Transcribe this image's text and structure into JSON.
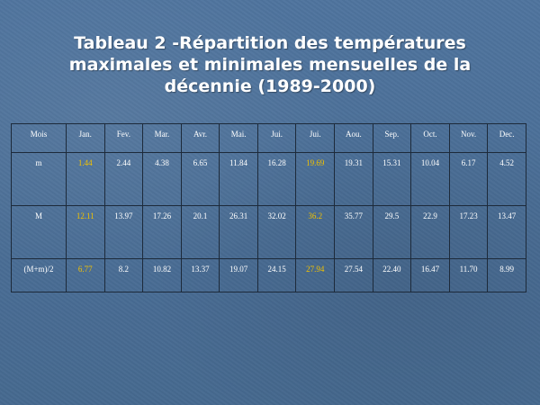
{
  "title": "Tableau 2 -Répartition des températures maximales et minimales mensuelles de la décennie (1989-2000)",
  "table": {
    "header": [
      "Mois",
      "Jan.",
      "Fev.",
      "Mar.",
      "Avr.",
      "Mai.",
      "Jui.",
      "Jui.",
      "Aou.",
      "Sep.",
      "Oct.",
      "Nov.",
      "Dec."
    ],
    "rows": [
      {
        "label": "m",
        "values": [
          "1.44",
          "2.44",
          "4.38",
          "6.65",
          "11.84",
          "16.28",
          "19.69",
          "19.31",
          "15.31",
          "10.04",
          "6.17",
          "4.52"
        ]
      },
      {
        "label": "M",
        "values": [
          "12.11",
          "13.97",
          "17.26",
          "20.1",
          "26.31",
          "32.02",
          "36.2",
          "35.77",
          "29.5",
          "22.9",
          "17.23",
          "13.47"
        ]
      },
      {
        "label": "(M+m)/2",
        "values": [
          "6.77",
          "8.2",
          "10.82",
          "13.37",
          "19.07",
          "24.15",
          "27.94",
          "27.54",
          "22.40",
          "16.47",
          "11.70",
          "8.99"
        ]
      }
    ],
    "highlight_color": "#f2c200"
  }
}
